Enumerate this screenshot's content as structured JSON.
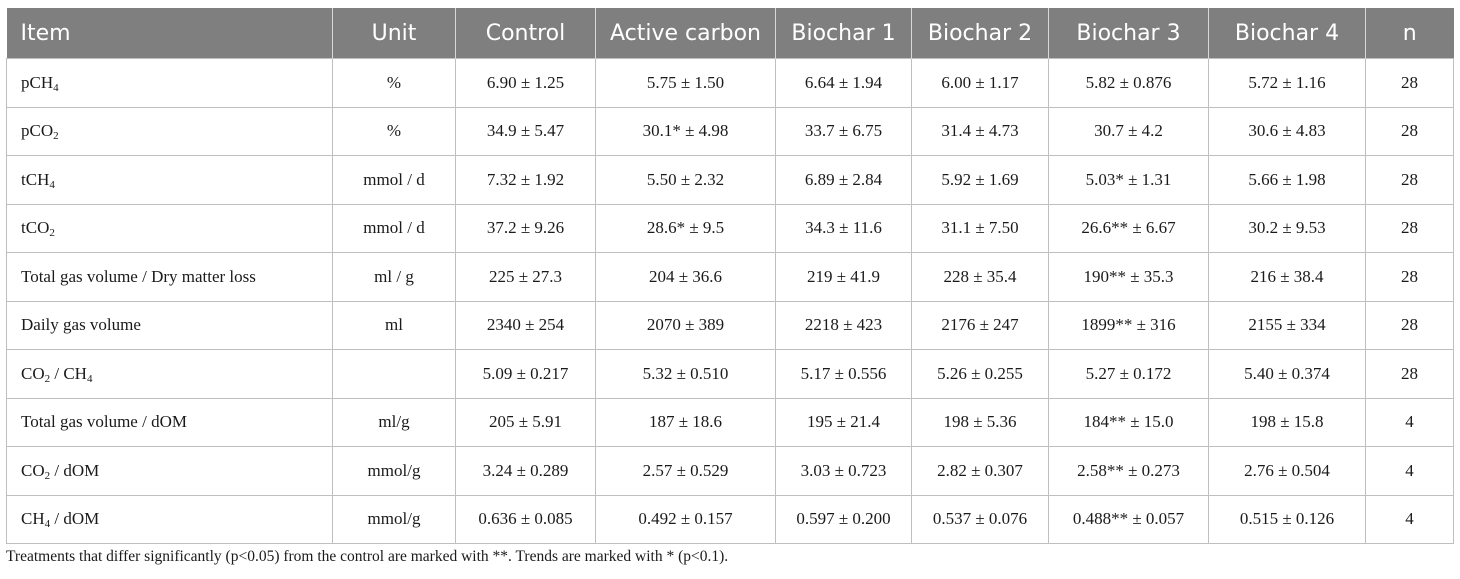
{
  "table": {
    "headers": [
      "Item",
      "Unit",
      "Control",
      "Active carbon",
      "Biochar 1",
      "Biochar 2",
      "Biochar 3",
      "Biochar 4",
      "n"
    ],
    "rows": [
      {
        "item": [
          "p",
          "CH",
          "4",
          "",
          ""
        ],
        "unit": "%",
        "values": [
          "6.90 ± 1.25",
          "5.75 ± 1.50",
          "6.64 ± 1.94",
          "6.00 ± 1.17",
          "5.82 ± 0.876",
          "5.72 ± 1.16"
        ],
        "n": "28"
      },
      {
        "item": [
          "p",
          "CO",
          "2",
          "",
          ""
        ],
        "unit": "%",
        "values": [
          "34.9 ± 5.47",
          "30.1* ± 4.98",
          "33.7 ± 6.75",
          "31.4 ± 4.73",
          "30.7 ± 4.2",
          "30.6 ± 4.83"
        ],
        "n": "28"
      },
      {
        "item": [
          "t",
          "CH",
          "4",
          "",
          ""
        ],
        "unit": "mmol / d",
        "values": [
          "7.32 ± 1.92",
          "5.50 ± 2.32",
          "6.89 ± 2.84",
          "5.92 ± 1.69",
          "5.03* ± 1.31",
          "5.66 ± 1.98"
        ],
        "n": "28"
      },
      {
        "item": [
          "t",
          "CO",
          "2",
          "",
          ""
        ],
        "unit": "mmol / d",
        "values": [
          "37.2 ± 9.26",
          "28.6* ± 9.5",
          "34.3 ± 11.6",
          "31.1 ± 7.50",
          "26.6** ± 6.67",
          "30.2 ± 9.53"
        ],
        "n": "28"
      },
      {
        "item": [
          "Total gas volume / Dry matter loss",
          "",
          "",
          "",
          ""
        ],
        "unit": "ml / g",
        "values": [
          "225 ± 27.3",
          "204 ± 36.6",
          "219 ± 41.9",
          "228 ± 35.4",
          "190** ± 35.3",
          "216 ± 38.4"
        ],
        "n": "28"
      },
      {
        "item": [
          "Daily gas volume",
          "",
          "",
          "",
          ""
        ],
        "unit": "ml",
        "values": [
          "2340 ± 254",
          "2070 ± 389",
          "2218 ± 423",
          "2176 ± 247",
          "1899** ± 316",
          "2155 ± 334"
        ],
        "n": "28"
      },
      {
        "item": [
          "",
          "CO",
          "2",
          " / CH",
          "4"
        ],
        "unit": "",
        "values": [
          "5.09 ± 0.217",
          "5.32 ± 0.510",
          "5.17 ± 0.556",
          "5.26 ± 0.255",
          "5.27 ± 0.172",
          "5.40 ± 0.374"
        ],
        "n": "28"
      },
      {
        "item": [
          "Total gas volume / dOM",
          "",
          "",
          "",
          ""
        ],
        "unit": "ml/g",
        "values": [
          "205 ± 5.91",
          "187 ± 18.6",
          "195 ± 21.4",
          "198 ± 5.36",
          "184** ± 15.0",
          "198 ± 15.8"
        ],
        "n": "4"
      },
      {
        "item": [
          "",
          "CO",
          "2",
          " / dOM",
          ""
        ],
        "unit": "mmol/g",
        "values": [
          "3.24 ± 0.289",
          "2.57 ± 0.529",
          "3.03 ± 0.723",
          "2.82 ± 0.307",
          "2.58** ± 0.273",
          "2.76 ± 0.504"
        ],
        "n": "4"
      },
      {
        "item": [
          "",
          "CH",
          "4",
          " / dOM",
          ""
        ],
        "unit": "mmol/g",
        "values": [
          "0.636 ± 0.085",
          "0.492 ± 0.157",
          "0.597 ± 0.200",
          "0.537 ± 0.076",
          "0.488** ± 0.057",
          "0.515 ± 0.126"
        ],
        "n": "4"
      }
    ]
  },
  "footnote": "Treatments that differ significantly (p<0.05) from the control are marked with **. Trends are marked with * (p<0.1)."
}
